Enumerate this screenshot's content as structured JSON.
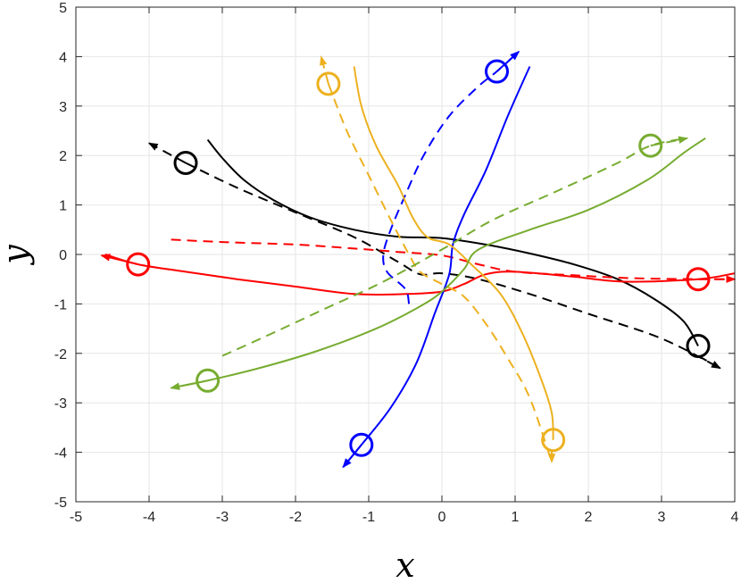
{
  "chart_data": {
    "type": "line",
    "xlabel": "x",
    "ylabel": "y",
    "xlim": [
      -5,
      4
    ],
    "ylim": [
      -5,
      5
    ],
    "x_ticks": [
      "-5",
      "-4",
      "-3",
      "-2",
      "-1",
      "0",
      "1",
      "2",
      "3",
      "4"
    ],
    "y_ticks": [
      "-5",
      "-4",
      "-3",
      "-2",
      "-1",
      "0",
      "1",
      "2",
      "3",
      "4",
      "5"
    ],
    "grid": true,
    "series": [
      {
        "color": "#000000",
        "style": "solid",
        "points": [
          [
            -3.2,
            2.32
          ],
          [
            -3.0,
            1.95
          ],
          [
            -2.7,
            1.5
          ],
          [
            -2.3,
            1.1
          ],
          [
            -1.8,
            0.75
          ],
          [
            -1.2,
            0.5
          ],
          [
            -0.6,
            0.36
          ],
          [
            0,
            0.33
          ],
          [
            0.6,
            0.2
          ],
          [
            1.2,
            0.02
          ],
          [
            1.8,
            -0.2
          ],
          [
            2.4,
            -0.5
          ],
          [
            2.9,
            -0.9
          ],
          [
            3.3,
            -1.35
          ],
          [
            3.5,
            -1.85
          ]
        ],
        "marker": [
          3.5,
          -1.85
        ],
        "arrow": null
      },
      {
        "color": "#000000",
        "style": "dashed",
        "points": [
          [
            -3.5,
            1.85
          ],
          [
            -2.8,
            1.35
          ],
          [
            -2,
            0.85
          ],
          [
            -1.2,
            0.35
          ],
          [
            -0.6,
            -0.15
          ],
          [
            -0.3,
            -0.4
          ],
          [
            0,
            -0.38
          ],
          [
            0.5,
            -0.5
          ],
          [
            1.2,
            -0.8
          ],
          [
            2,
            -1.2
          ],
          [
            3,
            -1.7
          ],
          [
            3.8,
            -2.3
          ]
        ],
        "marker": [
          -3.5,
          1.85
        ],
        "arrow": [
          [
            -3.5,
            1.85
          ],
          [
            -4.0,
            2.25
          ],
          [
            3.5,
            -2.05
          ],
          [
            3.8,
            -2.3
          ]
        ]
      },
      {
        "color": "#ff0000",
        "style": "solid",
        "points": [
          [
            -4.6,
            0
          ],
          [
            -4.15,
            -0.2
          ],
          [
            -3.5,
            -0.35
          ],
          [
            -2.8,
            -0.5
          ],
          [
            -2,
            -0.65
          ],
          [
            -1.2,
            -0.8
          ],
          [
            -0.5,
            -0.8
          ],
          [
            0,
            -0.75
          ],
          [
            0.3,
            -0.6
          ],
          [
            0.6,
            -0.4
          ],
          [
            1,
            -0.35
          ],
          [
            1.8,
            -0.45
          ],
          [
            2.5,
            -0.55
          ],
          [
            3.5,
            -0.5
          ],
          [
            4,
            -0.38
          ]
        ],
        "marker": [
          -4.15,
          -0.2
        ],
        "arrow": [
          [
            -4.15,
            -0.2
          ],
          [
            -4.65,
            -0.02
          ]
        ]
      },
      {
        "color": "#ff0000",
        "style": "dashed",
        "points": [
          [
            -3.7,
            0.3
          ],
          [
            -3,
            0.25
          ],
          [
            -2,
            0.2
          ],
          [
            -1.2,
            0.12
          ],
          [
            -0.6,
            0.05
          ],
          [
            0,
            -0.02
          ],
          [
            0.5,
            -0.2
          ],
          [
            1,
            -0.35
          ],
          [
            1.8,
            -0.42
          ],
          [
            2.6,
            -0.48
          ],
          [
            3.5,
            -0.5
          ],
          [
            4,
            -0.5
          ]
        ],
        "marker": [
          3.5,
          -0.5
        ],
        "arrow": [
          [
            3.5,
            -0.5
          ],
          [
            4.0,
            -0.5
          ]
        ]
      },
      {
        "color": "#0000ff",
        "style": "solid",
        "points": [
          [
            -1.35,
            -4.3
          ],
          [
            -1.1,
            -3.85
          ],
          [
            -0.7,
            -3.1
          ],
          [
            -0.35,
            -2.2
          ],
          [
            -0.1,
            -1.2
          ],
          [
            0.1,
            -0.4
          ],
          [
            0.15,
            0.2
          ],
          [
            0.3,
            0.8
          ],
          [
            0.6,
            1.7
          ],
          [
            0.9,
            2.8
          ],
          [
            1.2,
            3.8
          ]
        ],
        "marker": [
          -1.1,
          -3.85
        ],
        "arrow": [
          [
            -1.1,
            -3.85
          ],
          [
            -1.35,
            -4.3
          ]
        ]
      },
      {
        "color": "#0000ff",
        "style": "dashed",
        "points": [
          [
            -0.45,
            -1.0
          ],
          [
            -0.5,
            -0.7
          ],
          [
            -0.75,
            -0.35
          ],
          [
            -0.8,
            0
          ],
          [
            -0.7,
            0.5
          ],
          [
            -0.5,
            1.2
          ],
          [
            -0.25,
            2
          ],
          [
            0.1,
            2.8
          ],
          [
            0.5,
            3.4
          ],
          [
            0.75,
            3.7
          ],
          [
            1.05,
            4.1
          ]
        ],
        "marker": [
          0.75,
          3.7
        ],
        "arrow": [
          [
            0.75,
            3.7
          ],
          [
            1.05,
            4.1
          ]
        ]
      },
      {
        "color": "#edb120",
        "style": "solid",
        "points": [
          [
            -1.2,
            3.8
          ],
          [
            -1.1,
            3.0
          ],
          [
            -0.9,
            2.2
          ],
          [
            -0.6,
            1.4
          ],
          [
            -0.4,
            0.75
          ],
          [
            -0.2,
            0.35
          ],
          [
            0.1,
            0.2
          ],
          [
            0.4,
            -0.2
          ],
          [
            0.8,
            -0.8
          ],
          [
            1.1,
            -1.6
          ],
          [
            1.35,
            -2.5
          ],
          [
            1.5,
            -3.2
          ],
          [
            1.52,
            -3.75
          ]
        ],
        "marker": [
          1.52,
          -3.75
        ],
        "arrow": null
      },
      {
        "color": "#edb120",
        "style": "dashed",
        "points": [
          [
            -1.55,
            3.45
          ],
          [
            -1.3,
            2.5
          ],
          [
            -1.0,
            1.6
          ],
          [
            -0.7,
            0.7
          ],
          [
            -0.45,
            0
          ],
          [
            -0.3,
            -0.35
          ],
          [
            0,
            -0.6
          ],
          [
            0.3,
            -0.85
          ],
          [
            0.6,
            -1.4
          ],
          [
            0.9,
            -2.1
          ],
          [
            1.2,
            -2.9
          ],
          [
            1.5,
            -4.2
          ]
        ],
        "marker": [
          -1.55,
          3.45
        ],
        "arrow": [
          [
            -1.55,
            3.45
          ],
          [
            -1.65,
            4.0
          ],
          [
            1.5,
            -3.95
          ],
          [
            1.5,
            -4.2
          ]
        ]
      },
      {
        "color": "#77ac30",
        "style": "solid",
        "points": [
          [
            -3.7,
            -2.7
          ],
          [
            -3.2,
            -2.55
          ],
          [
            -2.5,
            -2.3
          ],
          [
            -1.7,
            -1.95
          ],
          [
            -0.9,
            -1.5
          ],
          [
            -0.3,
            -1.05
          ],
          [
            0,
            -0.75
          ],
          [
            0.3,
            -0.3
          ],
          [
            0.5,
            0.1
          ],
          [
            1.2,
            0.5
          ],
          [
            2,
            0.9
          ],
          [
            2.8,
            1.5
          ],
          [
            3.3,
            2.05
          ],
          [
            3.6,
            2.35
          ]
        ],
        "marker": [
          -3.2,
          -2.55
        ],
        "arrow": [
          [
            -3.2,
            -2.55
          ],
          [
            -3.7,
            -2.7
          ]
        ]
      },
      {
        "color": "#77ac30",
        "style": "dashed",
        "points": [
          [
            -3.0,
            -2.05
          ],
          [
            -2.4,
            -1.65
          ],
          [
            -1.6,
            -1.1
          ],
          [
            -0.8,
            -0.55
          ],
          [
            0,
            0.1
          ],
          [
            0.7,
            0.7
          ],
          [
            1.6,
            1.3
          ],
          [
            2.4,
            1.85
          ],
          [
            2.85,
            2.2
          ],
          [
            3.35,
            2.35
          ]
        ],
        "marker": [
          2.85,
          2.2
        ],
        "arrow": [
          [
            2.85,
            2.2
          ],
          [
            3.35,
            2.35
          ]
        ]
      }
    ]
  }
}
